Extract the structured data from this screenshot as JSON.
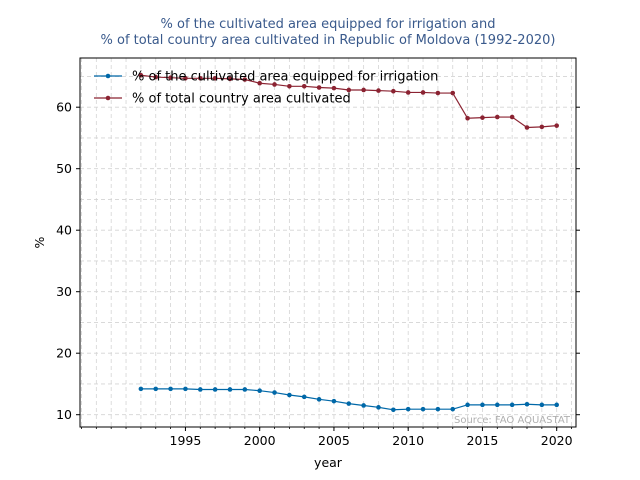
{
  "chart_data": {
    "type": "line",
    "title_lines": [
      "% of the cultivated area equipped for irrigation and",
      "% of total country area cultivated in Republic of Moldova (1992-2020)"
    ],
    "xlabel": "year",
    "ylabel": "%",
    "xlim": [
      1987.9,
      2021.3
    ],
    "ylim": [
      8.0,
      68.0
    ],
    "x_ticks": [
      1995,
      2000,
      2005,
      2010,
      2015,
      2020
    ],
    "y_ticks": [
      10,
      20,
      30,
      40,
      50,
      60
    ],
    "grid": true,
    "legend_position": "top-left",
    "source_note": "Source: FAO AQUASTAT",
    "x": [
      1992,
      1993,
      1994,
      1995,
      1996,
      1997,
      1998,
      1999,
      2000,
      2001,
      2002,
      2003,
      2004,
      2005,
      2006,
      2007,
      2008,
      2009,
      2010,
      2011,
      2012,
      2013,
      2014,
      2015,
      2016,
      2017,
      2018,
      2019,
      2020
    ],
    "series": [
      {
        "name": "% of the cultivated area equipped for irrigation",
        "color": "#0068a8",
        "values": [
          14.2,
          14.2,
          14.2,
          14.2,
          14.1,
          14.1,
          14.1,
          14.1,
          13.9,
          13.6,
          13.2,
          12.9,
          12.5,
          12.2,
          11.8,
          11.5,
          11.2,
          10.8,
          10.9,
          10.9,
          10.9,
          10.9,
          11.6,
          11.6,
          11.6,
          11.6,
          11.7,
          11.6,
          11.6
        ]
      },
      {
        "name": "% of total country area cultivated",
        "color": "#8b2332",
        "values": [
          65.2,
          64.9,
          64.8,
          64.7,
          64.7,
          64.7,
          64.6,
          64.5,
          63.9,
          63.7,
          63.4,
          63.4,
          63.2,
          63.1,
          62.8,
          62.8,
          62.7,
          62.6,
          62.4,
          62.4,
          62.3,
          62.3,
          58.2,
          58.3,
          58.4,
          58.4,
          56.7,
          56.8,
          57.0
        ]
      }
    ]
  }
}
